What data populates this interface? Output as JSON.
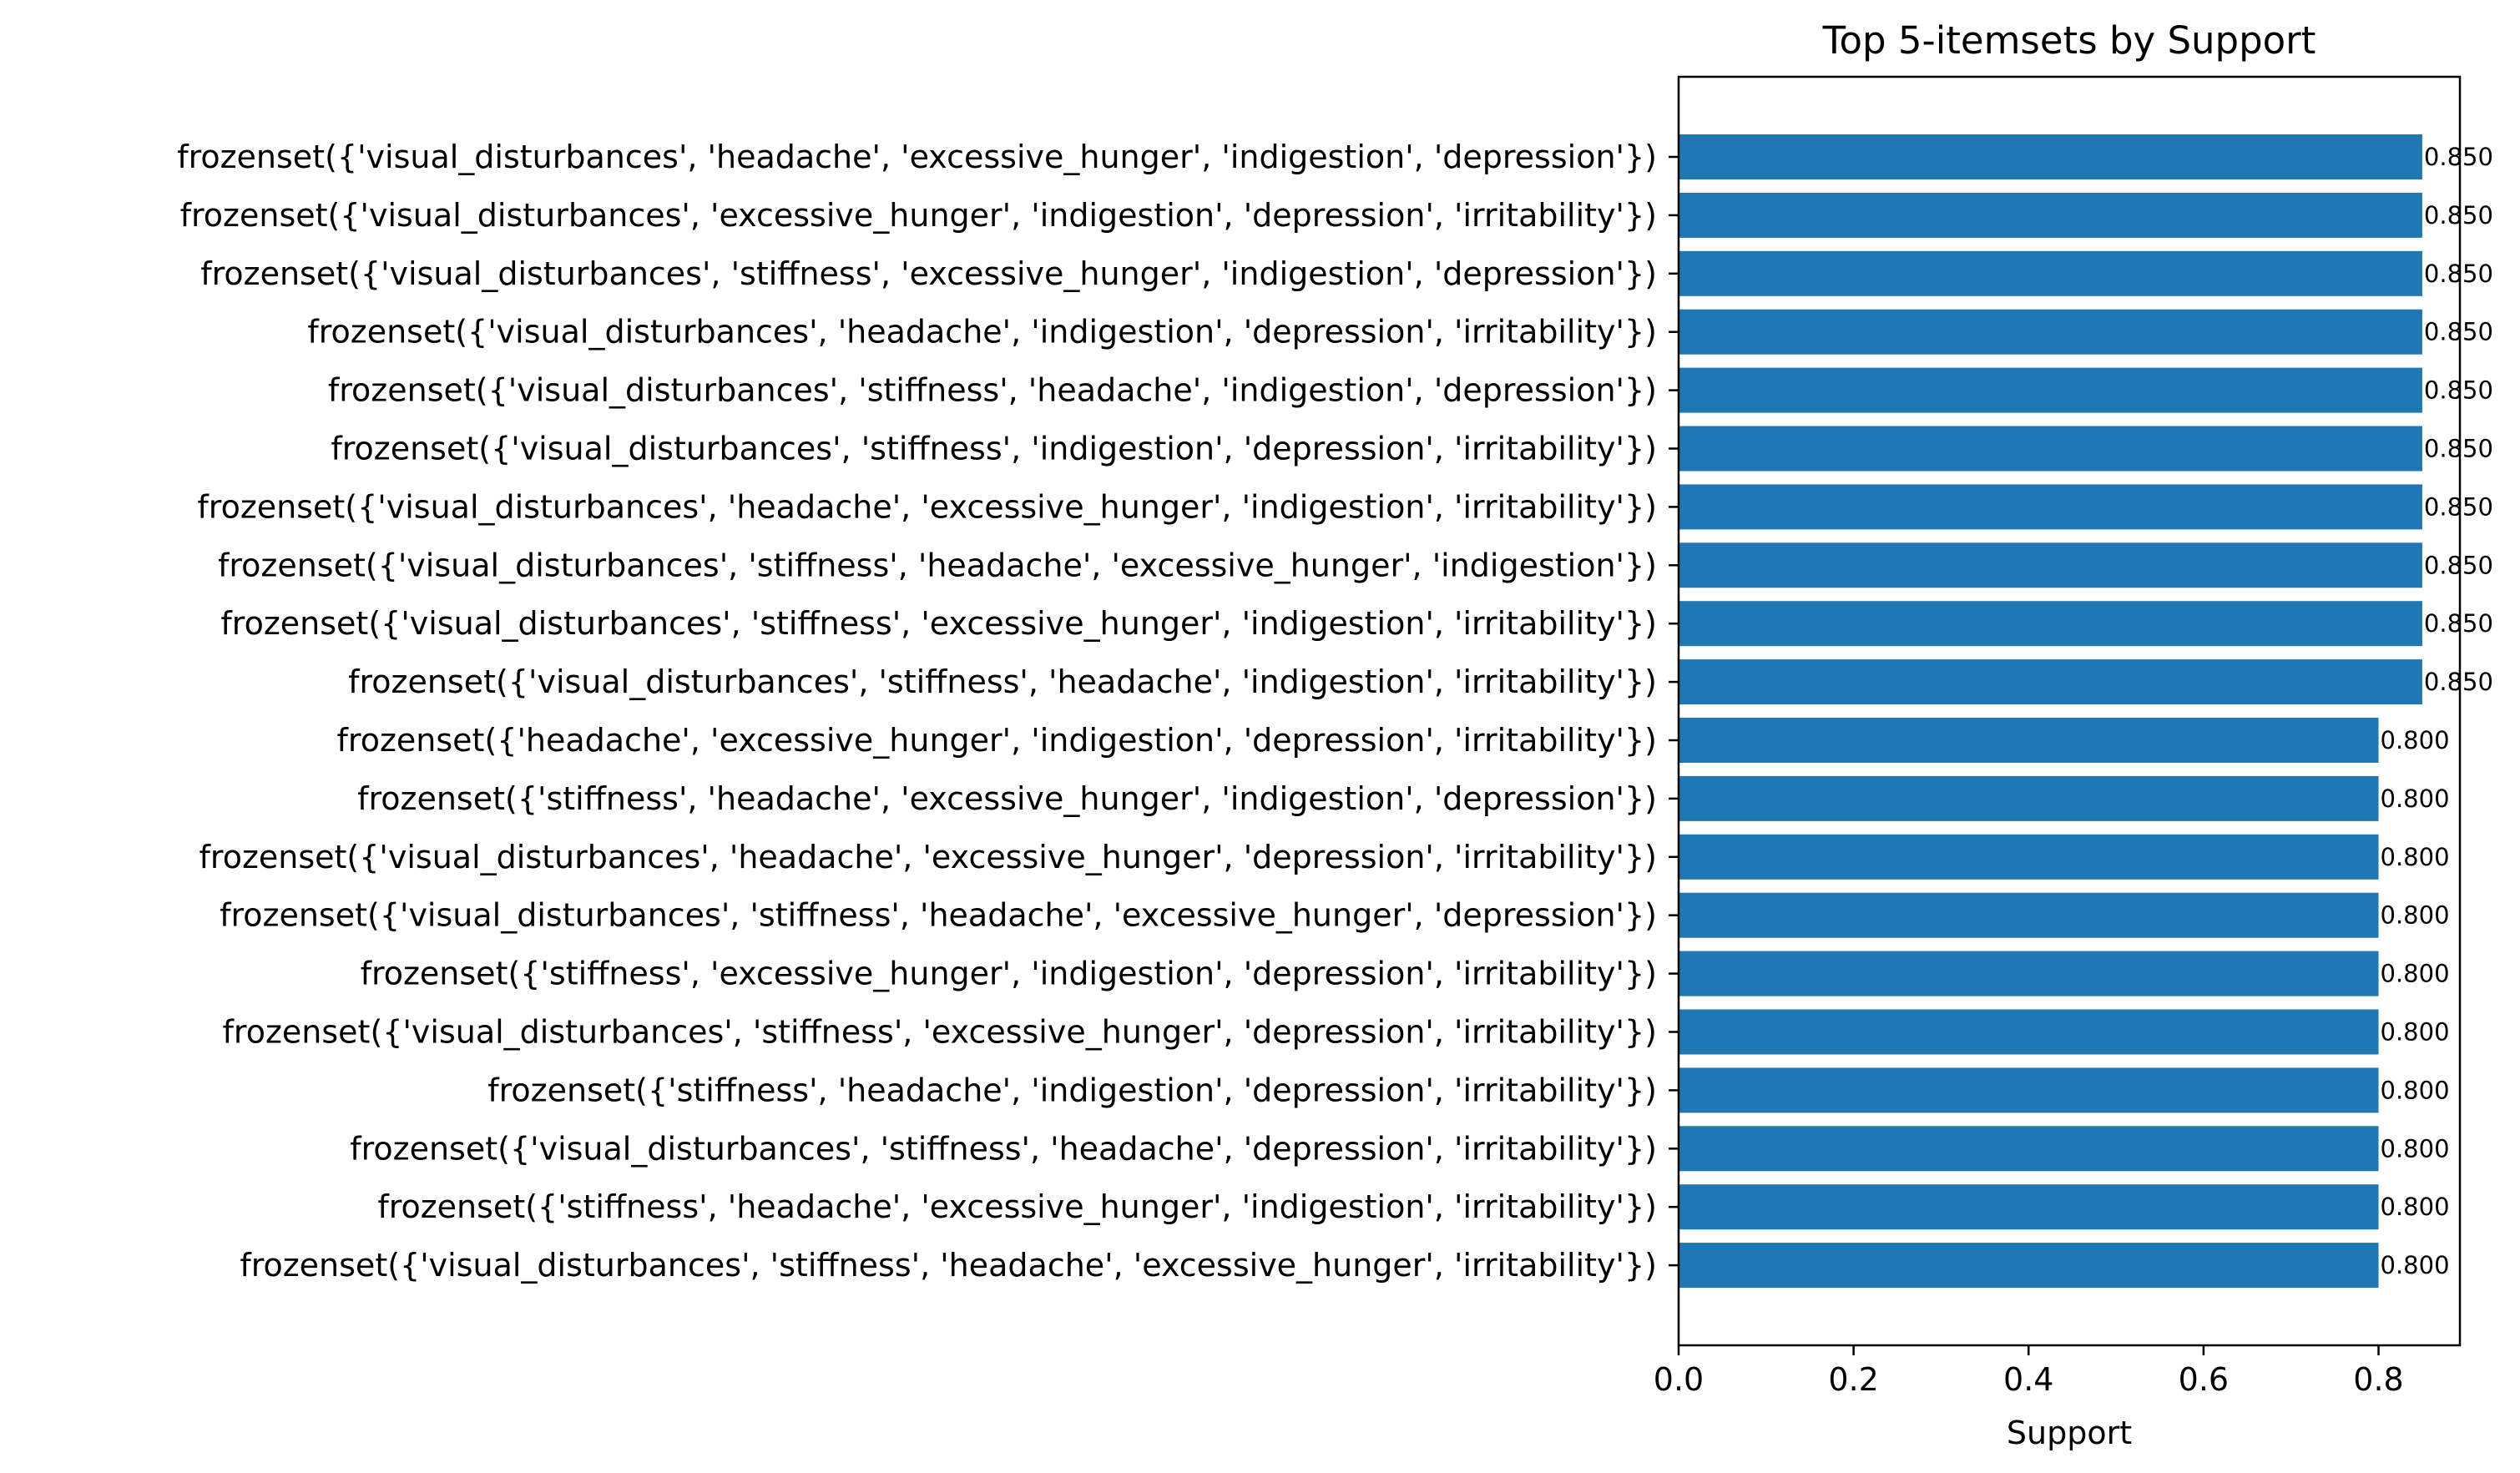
{
  "chart_data": {
    "type": "bar",
    "orientation": "horizontal",
    "title": "Top 5-itemsets by Support",
    "xlabel": "Support",
    "ylabel": "",
    "xlim": [
      0,
      0.893
    ],
    "xticks": [
      "0.0",
      "0.2",
      "0.4",
      "0.6",
      "0.8"
    ],
    "grid": false,
    "bar_color": "#1f77b4",
    "categories": [
      "frozenset({'visual_disturbances', 'headache', 'excessive_hunger', 'indigestion', 'depression'})",
      "frozenset({'visual_disturbances', 'excessive_hunger', 'indigestion', 'depression', 'irritability'})",
      "frozenset({'visual_disturbances', 'stiffness', 'excessive_hunger', 'indigestion', 'depression'})",
      "frozenset({'visual_disturbances', 'headache', 'indigestion', 'depression', 'irritability'})",
      "frozenset({'visual_disturbances', 'stiffness', 'headache', 'indigestion', 'depression'})",
      "frozenset({'visual_disturbances', 'stiffness', 'indigestion', 'depression', 'irritability'})",
      "frozenset({'visual_disturbances', 'headache', 'excessive_hunger', 'indigestion', 'irritability'})",
      "frozenset({'visual_disturbances', 'stiffness', 'headache', 'excessive_hunger', 'indigestion'})",
      "frozenset({'visual_disturbances', 'stiffness', 'excessive_hunger', 'indigestion', 'irritability'})",
      "frozenset({'visual_disturbances', 'stiffness', 'headache', 'indigestion', 'irritability'})",
      "frozenset({'headache', 'excessive_hunger', 'indigestion', 'depression', 'irritability'})",
      "frozenset({'stiffness', 'headache', 'excessive_hunger', 'indigestion', 'depression'})",
      "frozenset({'visual_disturbances', 'headache', 'excessive_hunger', 'depression', 'irritability'})",
      "frozenset({'visual_disturbances', 'stiffness', 'headache', 'excessive_hunger', 'depression'})",
      "frozenset({'stiffness', 'excessive_hunger', 'indigestion', 'depression', 'irritability'})",
      "frozenset({'visual_disturbances', 'stiffness', 'excessive_hunger', 'depression', 'irritability'})",
      "frozenset({'stiffness', 'headache', 'indigestion', 'depression', 'irritability'})",
      "frozenset({'visual_disturbances', 'stiffness', 'headache', 'depression', 'irritability'})",
      "frozenset({'stiffness', 'headache', 'excessive_hunger', 'indigestion', 'irritability'})",
      "frozenset({'visual_disturbances', 'stiffness', 'headache', 'excessive_hunger', 'irritability'})"
    ],
    "values": [
      0.85,
      0.85,
      0.85,
      0.85,
      0.85,
      0.85,
      0.85,
      0.85,
      0.85,
      0.85,
      0.8,
      0.8,
      0.8,
      0.8,
      0.8,
      0.8,
      0.8,
      0.8,
      0.8,
      0.8
    ],
    "value_labels": [
      "0.850",
      "0.850",
      "0.850",
      "0.850",
      "0.850",
      "0.850",
      "0.850",
      "0.850",
      "0.850",
      "0.850",
      "0.800",
      "0.800",
      "0.800",
      "0.800",
      "0.800",
      "0.800",
      "0.800",
      "0.800",
      "0.800",
      "0.800"
    ]
  }
}
